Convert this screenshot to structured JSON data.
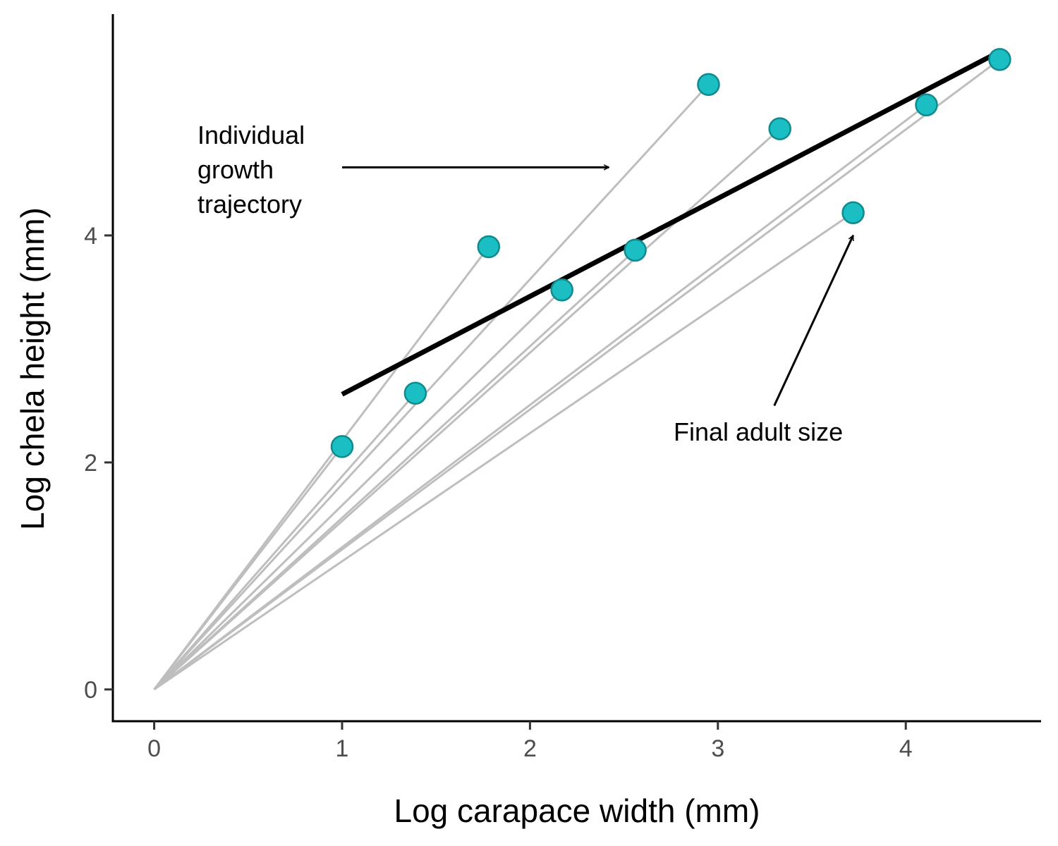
{
  "chart_data": {
    "type": "scatter",
    "xlabel": "Log carapace width (mm)",
    "ylabel": "Log chela height (mm)",
    "xlim": [
      -0.22,
      4.72
    ],
    "ylim": [
      -0.28,
      5.95
    ],
    "x_ticks": [
      0,
      1,
      2,
      3,
      4
    ],
    "y_ticks": [
      0,
      2,
      4
    ],
    "x_tick_labels": [
      "0",
      "1",
      "2",
      "3",
      "4"
    ],
    "y_tick_labels": [
      "0",
      "2",
      "4"
    ],
    "grid": false,
    "legend": "none",
    "origin": [
      0,
      0
    ],
    "points": [
      {
        "x": 1.0,
        "y": 2.14
      },
      {
        "x": 1.39,
        "y": 2.61
      },
      {
        "x": 1.78,
        "y": 3.9
      },
      {
        "x": 2.17,
        "y": 3.52
      },
      {
        "x": 2.56,
        "y": 3.87
      },
      {
        "x": 2.95,
        "y": 5.33
      },
      {
        "x": 3.33,
        "y": 4.94
      },
      {
        "x": 3.72,
        "y": 4.2
      },
      {
        "x": 4.11,
        "y": 5.15
      },
      {
        "x": 4.5,
        "y": 5.55
      }
    ],
    "fit_line": {
      "x": [
        1.0,
        4.5
      ],
      "y": [
        2.6,
        5.62
      ]
    },
    "annotations": [
      {
        "lines": [
          "Individual",
          "growth",
          "trajectory"
        ],
        "arrow_from": [
          1.0,
          4.6
        ],
        "arrow_to": [
          2.42,
          4.6
        ]
      },
      {
        "lines": [
          "Final adult size"
        ],
        "arrow_from": [
          3.3,
          2.5
        ],
        "arrow_to": [
          3.72,
          4.0
        ]
      }
    ],
    "colors": {
      "point_fill": "#1bbec3",
      "point_stroke": "#0f8a8d",
      "trajectory": "#bebebe",
      "fit_line": "#000000",
      "axis": "#000000",
      "tick_label": "#4d4d4d"
    }
  }
}
